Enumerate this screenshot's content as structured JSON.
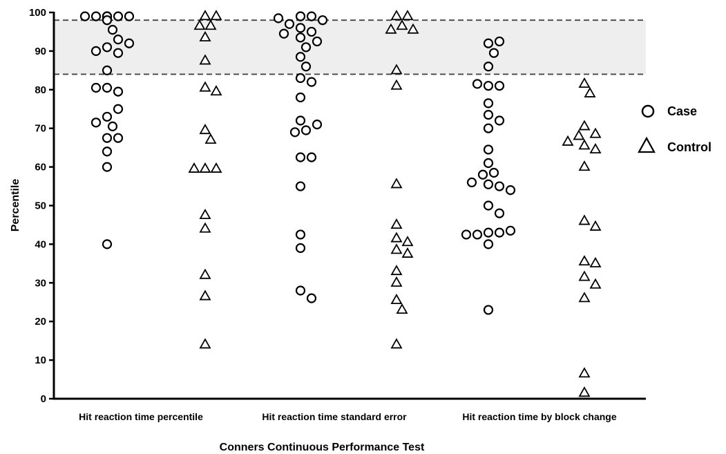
{
  "chart_data": {
    "type": "scatter",
    "xlabel": "Conners Continuous Performance Test",
    "ylabel": "Percentile",
    "ylim": [
      0,
      100
    ],
    "yticks": [
      0,
      10,
      20,
      30,
      40,
      50,
      60,
      70,
      80,
      90,
      100
    ],
    "grid": false,
    "categories": [
      "Hit reaction time percentile",
      "Hit reaction time standard error",
      "Hit reaction time by block change"
    ],
    "reference_band": {
      "low": 84,
      "high": 98,
      "fill": "#eeeeee",
      "line_style": "dashed"
    },
    "legend": {
      "position": "right",
      "entries": [
        {
          "label": "Case",
          "marker": "circle"
        },
        {
          "label": "Control",
          "marker": "triangle"
        }
      ]
    },
    "series": [
      {
        "name": "Case",
        "marker": "circle",
        "groups": [
          [
            99,
            99,
            99,
            99,
            99,
            98.5,
            99,
            99,
            98,
            95.5,
            91,
            89.5,
            90,
            93,
            92,
            85,
            80.5,
            79.5,
            80.5,
            73,
            75,
            70.5,
            71.5,
            67.5,
            67.5,
            64,
            60,
            40
          ],
          [
            99,
            99,
            97,
            98,
            98.5,
            99,
            93.5,
            95,
            94.5,
            96,
            92.5,
            91,
            88.5,
            86,
            83,
            82,
            78,
            72,
            69.5,
            69,
            71,
            62.5,
            62.5,
            55,
            42.5,
            39,
            28,
            26
          ],
          [
            92,
            92.5,
            89.5,
            86,
            81,
            81,
            81.5,
            76.5,
            73.5,
            72,
            70,
            64.5,
            61,
            58.5,
            58,
            55.5,
            55,
            56,
            54,
            50,
            48,
            43,
            43,
            42.5,
            43.5,
            42.5,
            40,
            23
          ]
        ]
      },
      {
        "name": "Control",
        "marker": "triangle",
        "groups": [
          [
            99,
            99,
            96.5,
            96.5,
            93.5,
            87.5,
            80.5,
            79.5,
            69.5,
            67,
            59.5,
            59.5,
            59.5,
            47.5,
            44,
            32,
            26.5,
            14
          ],
          [
            99,
            99,
            96.5,
            95.5,
            95.5,
            85,
            81,
            55.5,
            45,
            41.5,
            40.5,
            38.5,
            37.5,
            33,
            30,
            25.5,
            23,
            14
          ],
          [
            81.5,
            79,
            70.5,
            68.5,
            68,
            66.5,
            65.5,
            64.5,
            60,
            46,
            44.5,
            35.5,
            35,
            31.5,
            29.5,
            26,
            6.5,
            1.5
          ]
        ]
      }
    ]
  }
}
